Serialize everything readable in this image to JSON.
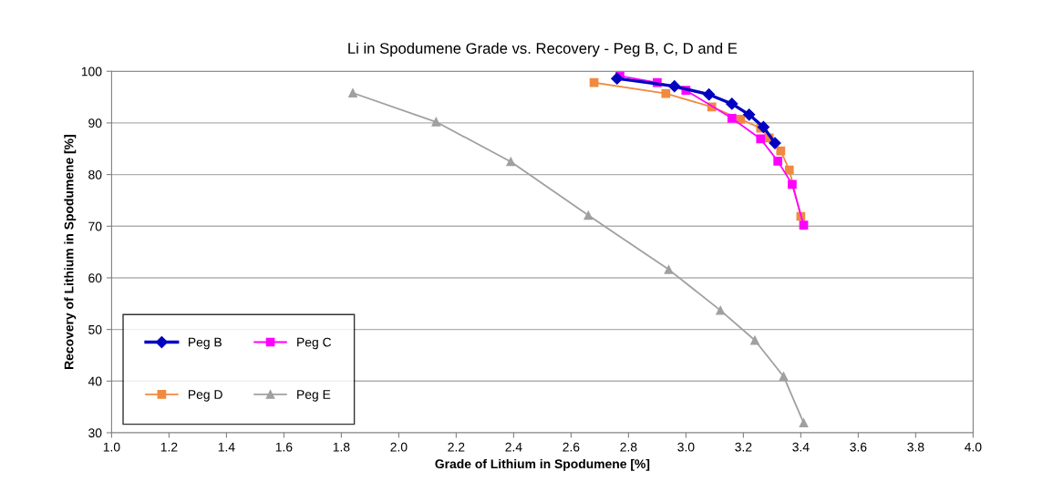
{
  "chart_data": {
    "type": "line",
    "title": "Li in Spodumene Grade vs. Recovery - Peg B, C, D and E",
    "xlabel": "Grade of Lithium in Spodumene [%]",
    "ylabel": "Recovery of Lithium in Spodumene [%]",
    "series": [
      {
        "name": "Peg B",
        "color": "#0000c0",
        "marker": "diamond",
        "x": [
          2.76,
          2.96,
          3.08,
          3.16,
          3.22,
          3.27,
          3.31
        ],
        "values": [
          98.6,
          97.1,
          95.5,
          93.7,
          91.6,
          89.2,
          86.1
        ]
      },
      {
        "name": "Peg C",
        "color": "#ff00ff",
        "marker": "square",
        "x": [
          2.77,
          2.9,
          3.0,
          3.16,
          3.26,
          3.32,
          3.37,
          3.41
        ],
        "values": [
          99.1,
          97.8,
          96.3,
          90.9,
          86.9,
          82.6,
          78.1,
          70.2
        ]
      },
      {
        "name": "Peg D",
        "color": "#f08a40",
        "marker": "square",
        "x": [
          2.68,
          2.93,
          3.09,
          3.19,
          3.26,
          3.29,
          3.33,
          3.36,
          3.4
        ],
        "values": [
          97.8,
          95.7,
          93.1,
          90.7,
          89.0,
          87.1,
          84.6,
          80.9,
          71.9
        ]
      },
      {
        "name": "Peg E",
        "color": "#a0a0a0",
        "marker": "triangle",
        "x": [
          1.84,
          2.13,
          2.39,
          2.66,
          2.94,
          3.12,
          3.24,
          3.34,
          3.41
        ],
        "values": [
          95.8,
          90.2,
          82.5,
          72.1,
          61.6,
          53.7,
          47.9,
          40.9,
          31.9
        ]
      }
    ],
    "xlim": [
      1.0,
      4.0
    ],
    "xticks": [
      {
        "value": 1,
        "label": "1.0"
      },
      1.2,
      1.4,
      1.6,
      1.8,
      {
        "value": 2,
        "label": "2.0"
      },
      2.2,
      2.4,
      2.6,
      2.8,
      {
        "value": 3,
        "label": "3.0"
      },
      3.2,
      3.4,
      3.6,
      3.8,
      {
        "value": 4,
        "label": "4.0"
      }
    ],
    "ylim": [
      30,
      100
    ],
    "yticks": [
      30,
      40,
      50,
      60,
      70,
      80,
      90,
      100
    ],
    "grid": "y",
    "legend": "bottom left",
    "line_style": "solid"
  }
}
